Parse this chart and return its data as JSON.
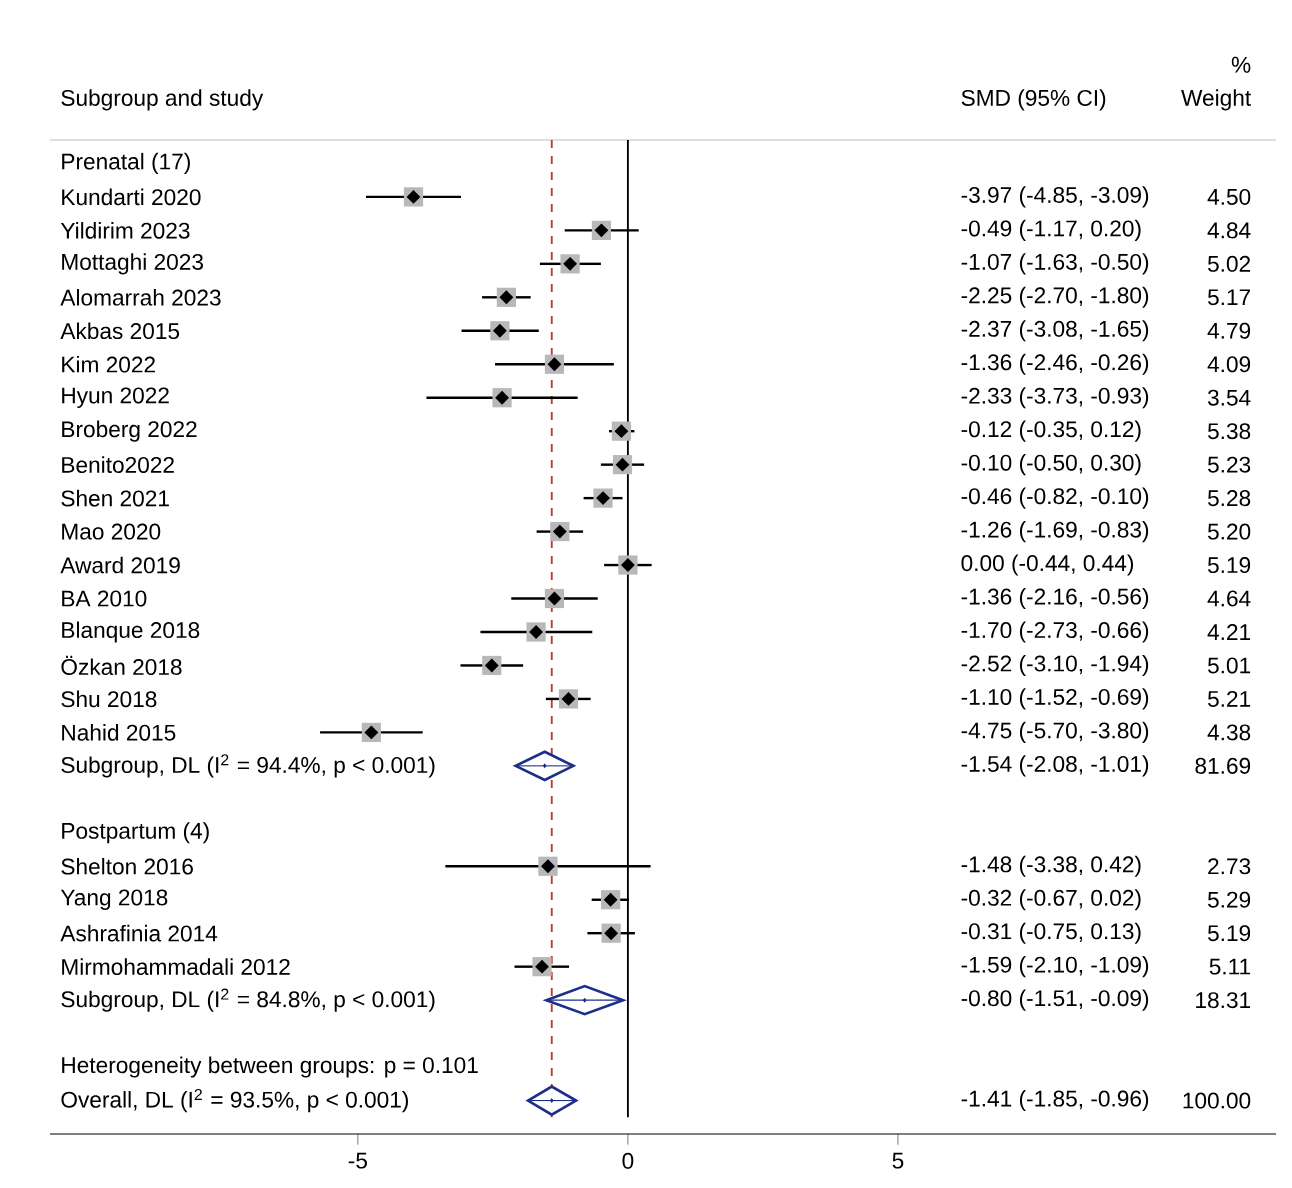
{
  "chart_data": {
    "type": "scatter",
    "orientation": "horizontal",
    "ylabel": "Subgroup and study",
    "categories": [
      "Prenatal (17)",
      "Kundarti 2020",
      "Yildirim 2023",
      "Mottaghi 2023",
      "Alomarrah 2023",
      "Akbas 2015",
      "Kim 2022",
      "Hyun 2022",
      "Broberg 2022",
      "Benito2022",
      "Shen 2021",
      "Mao 2020",
      "Award 2019",
      "BA 2010",
      "Blanque 2018",
      "Özkan 2018",
      "Shu 2018",
      "Nahid 2015",
      "Subgroup, DL (I$^{2}$ = 94.4%, p < 0.001)",
      null,
      "Postpartum (4)",
      "Shelton 2016",
      "Yang 2018",
      "Ashrafinia 2014",
      "Mirmohammadali 2012",
      "Subgroup, DL (I$^{2}$ = 84.8%, p < 0.001)",
      null,
      "Heterogeneity between groups: p = 0.101",
      "Overall, DL (I$^{2}$ = 93.5%, p < 0.001)"
    ],
    "xlim": [
      -10.7,
      12
    ],
    "xticks": [
      -5,
      0,
      5
    ],
    "ref_lines": [
      {
        "axis": "x",
        "value": 0,
        "color": "#000000",
        "line_style": "solid"
      },
      {
        "axis": "x",
        "value": -1.41,
        "color": "#c0392b",
        "line_style": "dashed"
      }
    ],
    "annotations": [
      "SMD (95% CI)",
      "%",
      "Weight",
      "-3.97 (-4.85, -3.09)",
      "4.50",
      "-0.49 (-1.17, 0.20)",
      "4.84",
      "-1.07 (-1.63, -0.50)",
      "5.02",
      "-2.25 (-2.70, -1.80)",
      "5.17",
      "-2.37 (-3.08, -1.65)",
      "4.79",
      "-1.36 (-2.46, -0.26)",
      "4.09",
      "-2.33 (-3.73, -0.93)",
      "3.54",
      "-0.12 (-0.35, 0.12)",
      "5.38",
      "-0.10 (-0.50, 0.30)",
      "5.23",
      "-0.46 (-0.82, -0.10)",
      "5.28",
      "-1.26 (-1.69, -0.83)",
      "5.20",
      "0.00 (-0.44, 0.44)",
      "5.19",
      "-1.36 (-2.16, -0.56)",
      "4.64",
      "-1.70 (-2.73, -0.66)",
      "4.21",
      "-2.52 (-3.10, -1.94)",
      "5.01",
      "-1.10 (-1.52, -0.69)",
      "5.21",
      "-4.75 (-5.70, -3.80)",
      "4.38",
      "-1.54 (-2.08, -1.01)",
      "81.69",
      "-1.48 (-3.38, 0.42)",
      "2.73",
      "-0.32 (-0.67, 0.02)",
      "5.29",
      "-0.31 (-0.75, 0.13)",
      "5.19",
      "-1.59 (-2.10, -1.09)",
      "5.11",
      "-0.80 (-1.51, -0.09)",
      "18.31",
      "-1.41 (-1.85, -0.96)",
      "100.00"
    ],
    "series": [
      {
        "marker": "diamond",
        "color": "#000000",
        "values": [
          null,
          -3.97,
          -0.49,
          -1.07,
          -2.25,
          -2.37,
          -1.36,
          -2.33,
          -0.12,
          -0.1,
          -0.46,
          -1.26,
          0.0,
          -1.36,
          -1.7,
          -2.52,
          -1.1,
          -4.75,
          null,
          null,
          null,
          -1.48,
          -0.32,
          -0.31,
          -1.59,
          null,
          null,
          null,
          null
        ],
        "errors": [
          null,
          [
            -4.85,
            -3.09
          ],
          [
            -1.17,
            0.2
          ],
          [
            -1.63,
            -0.5
          ],
          [
            -2.7,
            -1.8
          ],
          [
            -3.08,
            -1.65
          ],
          [
            -2.46,
            -0.26
          ],
          [
            -3.73,
            -0.93
          ],
          [
            -0.35,
            0.12
          ],
          [
            -0.5,
            0.3
          ],
          [
            -0.82,
            -0.1
          ],
          [
            -1.69,
            -0.83
          ],
          [
            -0.44,
            0.44
          ],
          [
            -2.16,
            -0.56
          ],
          [
            -2.73,
            -0.66
          ],
          [
            -3.1,
            -1.94
          ],
          [
            -1.52,
            -0.69
          ],
          [
            -5.7,
            -3.8
          ],
          null,
          null,
          null,
          [
            -3.38,
            0.42
          ],
          [
            -0.67,
            0.02
          ],
          [
            -0.75,
            0.13
          ],
          [
            -2.1,
            -1.09
          ],
          null,
          null,
          null,
          null
        ]
      },
      {
        "color": "#1c2e8a",
        "values": [
          null,
          null,
          null,
          null,
          null,
          null,
          null,
          null,
          null,
          null,
          null,
          null,
          null,
          null,
          null,
          null,
          null,
          null,
          -1.54,
          null,
          null,
          null,
          null,
          null,
          null,
          -0.8,
          null,
          null,
          -1.41
        ],
        "errors": [
          null,
          null,
          null,
          null,
          null,
          null,
          null,
          null,
          null,
          null,
          null,
          null,
          null,
          null,
          null,
          null,
          null,
          null,
          [
            -2.08,
            -1.01
          ],
          null,
          null,
          null,
          null,
          null,
          null,
          [
            -1.51,
            -0.09
          ],
          null,
          null,
          [
            -1.85,
            -0.96
          ]
        ]
      }
    ]
  }
}
